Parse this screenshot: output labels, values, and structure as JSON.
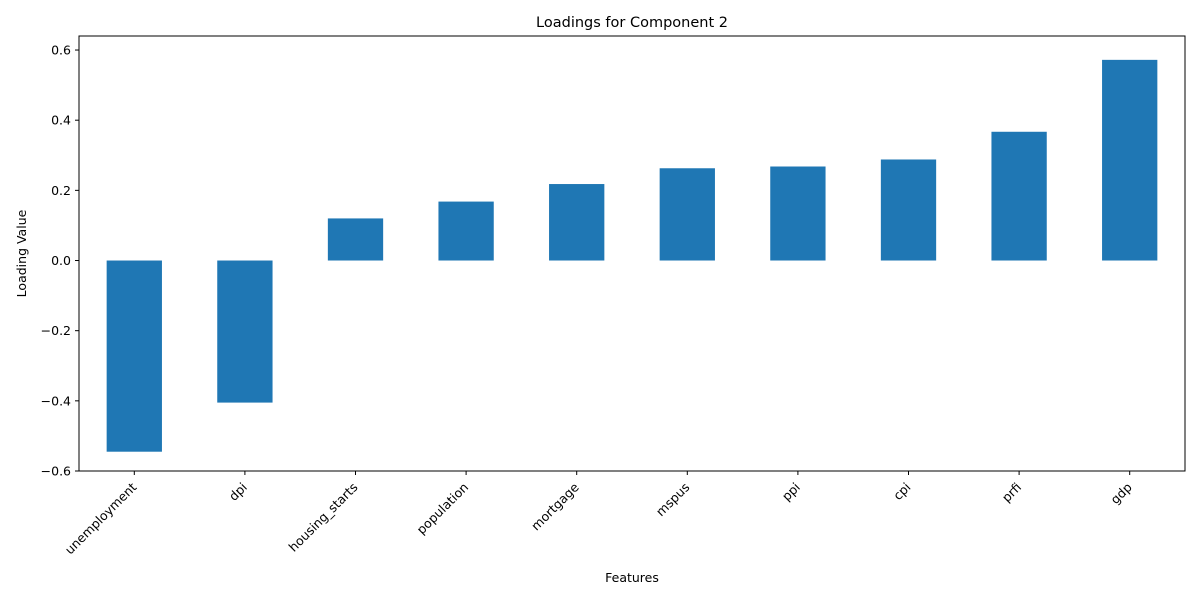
{
  "chart_data": {
    "type": "bar",
    "title": "Loadings for Component 2",
    "xlabel": "Features",
    "ylabel": "Loading Value",
    "categories": [
      "unemployment",
      "dpi",
      "housing_starts",
      "population",
      "mortgage",
      "mspus",
      "ppi",
      "cpi",
      "prfi",
      "gdp"
    ],
    "values": [
      -0.545,
      -0.405,
      0.12,
      0.168,
      0.218,
      0.263,
      0.268,
      0.288,
      0.367,
      0.572
    ],
    "ylim": [
      -0.6,
      0.64
    ],
    "yticks": [
      -0.6,
      -0.4,
      -0.2,
      0.0,
      0.2,
      0.4,
      0.6
    ],
    "ytick_labels": [
      "−0.6",
      "−0.4",
      "−0.2",
      "0.0",
      "0.2",
      "0.4",
      "0.6"
    ],
    "grid": false,
    "legend": "none",
    "bar_color": "#1f77b4"
  }
}
